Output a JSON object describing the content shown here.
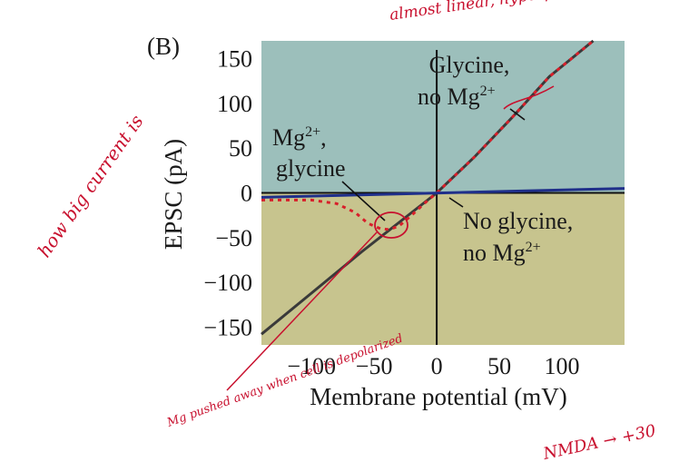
{
  "chart_data": {
    "type": "line",
    "panel_label": "(B)",
    "xlabel": "Membrane potential (mV)",
    "ylabel": "EPSC (pA)",
    "xlim": [
      -140,
      150
    ],
    "ylim": [
      -170,
      170
    ],
    "x_ticks": [
      -100,
      -50,
      0,
      50,
      100
    ],
    "x_tick_labels": [
      "−100",
      "−50",
      "0",
      "50",
      "100"
    ],
    "y_ticks": [
      150,
      100,
      50,
      0,
      -50,
      -100,
      -150
    ],
    "y_tick_labels": [
      "150",
      "100",
      "50",
      "0",
      "−50",
      "−100",
      "−150"
    ],
    "series": [
      {
        "name": "Glycine, no Mg2+",
        "style": "solid",
        "color": "#3a3a3a",
        "x": [
          -140,
          -100,
          -60,
          -30,
          0,
          30,
          60,
          90,
          125
        ],
        "y": [
          -158,
          -112,
          -66,
          -33,
          0,
          40,
          84,
          130,
          178
        ]
      },
      {
        "name": "Mg2+, glycine",
        "style": "dotted",
        "color": "#d81f2a",
        "x": [
          -140,
          -100,
          -80,
          -65,
          -55,
          -45,
          -38,
          -30,
          -20,
          -10,
          0,
          30,
          60,
          90,
          125
        ],
        "y": [
          -8,
          -8,
          -12,
          -22,
          -34,
          -40,
          -41,
          -37,
          -25,
          -12,
          0,
          40,
          84,
          130,
          178
        ]
      },
      {
        "name": "No glycine, no Mg2+",
        "style": "solid",
        "color": "#1f2f8a",
        "x": [
          -140,
          150
        ],
        "y": [
          -5,
          5
        ]
      }
    ],
    "annotations": [
      {
        "id": "glycine_no_mg",
        "line1": "Glycine,",
        "line2_base": "no Mg",
        "line2_sup": "2+"
      },
      {
        "id": "mg_glycine",
        "line1_base": "Mg",
        "line1_sup": "2+",
        "line1_end": ",",
        "line2": "glycine"
      },
      {
        "id": "no_glycine",
        "line1": "No glycine,",
        "line2_base": "no Mg",
        "line2_sup": "2+"
      }
    ],
    "colors": {
      "upper_bg": "#9cbfbb",
      "lower_bg": "#c7c48e",
      "handwriting": "#c8102e"
    }
  },
  "handwritten_notes": {
    "top_note": "almost linear, hyperpolarize & depolarize same but in opposite direction",
    "left_note": "how big current is",
    "bottom_left_note": "Mg pushed away when cell is depolarized",
    "bottom_right_note": "NMDA → +30"
  }
}
